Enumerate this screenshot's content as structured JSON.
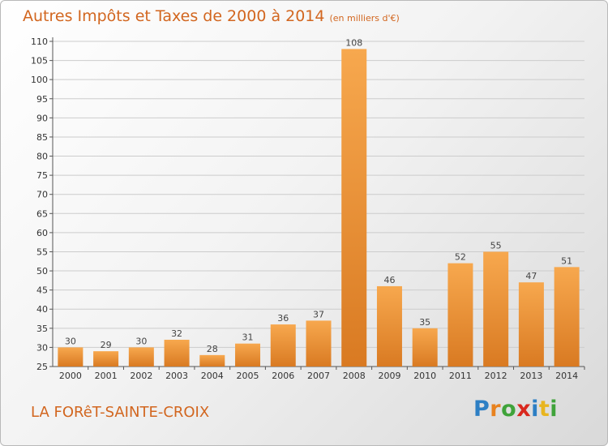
{
  "header": {
    "title": "Autres Impôts et Taxes de 2000 à 2014",
    "unit": "(en milliers d'€)"
  },
  "footer": {
    "commune": "LA FORêT-SAINTE-CROIX",
    "brand": "Proxiti"
  },
  "colors": {
    "bar_light": "#f7a84e",
    "bar_dark": "#d97a22",
    "title": "#d2661f",
    "grid": "#cccccc"
  },
  "chart_data": {
    "type": "bar",
    "title": "Autres Impôts et Taxes de 2000 à 2014",
    "subtitle": "(en milliers d'€)",
    "xlabel": "",
    "ylabel": "",
    "categories": [
      "2000",
      "2001",
      "2002",
      "2003",
      "2004",
      "2005",
      "2006",
      "2007",
      "2008",
      "2009",
      "2010",
      "2011",
      "2012",
      "2013",
      "2014"
    ],
    "values": [
      30,
      29,
      30,
      32,
      28,
      31,
      36,
      37,
      108,
      46,
      35,
      52,
      55,
      47,
      51
    ],
    "ylim": [
      25,
      110
    ],
    "yticks": [
      25,
      30,
      35,
      40,
      45,
      50,
      55,
      60,
      65,
      70,
      75,
      80,
      85,
      90,
      95,
      100,
      105,
      110
    ],
    "grid": true
  }
}
